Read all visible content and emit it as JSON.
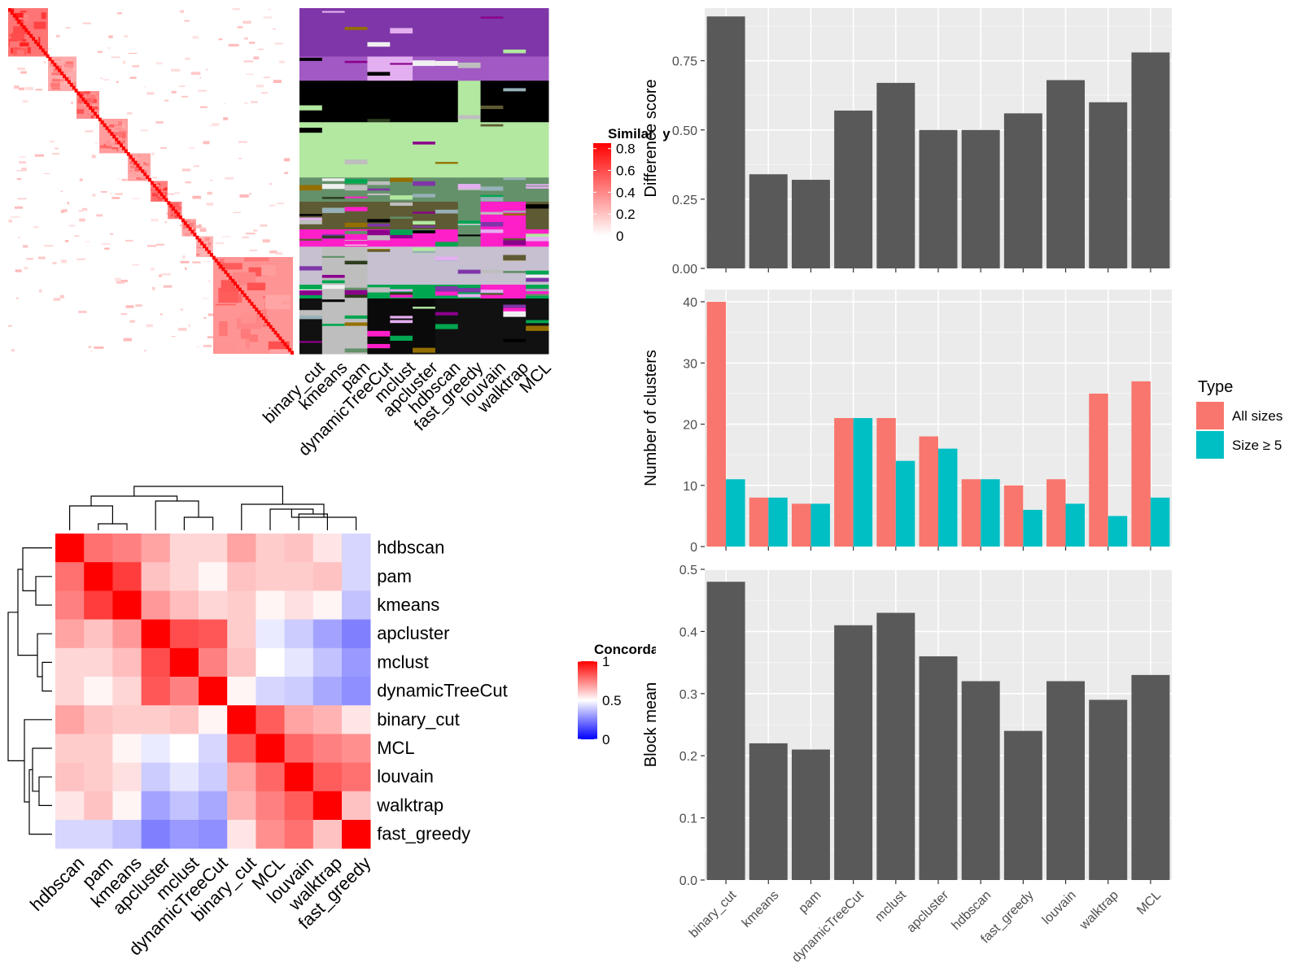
{
  "similarity_legend": {
    "title": "Similarity",
    "ticks": [
      "0.8",
      "0.6",
      "0.4",
      "0.2",
      "0"
    ],
    "tick_values": [
      0.8,
      0.6,
      0.4,
      0.2,
      0
    ],
    "colors": [
      "#FF0000",
      "#FFFFFF"
    ]
  },
  "concordance_legend": {
    "title": "Concordance",
    "ticks": [
      "1",
      "0.5",
      "0"
    ],
    "tick_values": [
      1,
      0.5,
      0
    ],
    "colors": [
      "#FF0000",
      "#FFFFFF",
      "#0000FF"
    ]
  },
  "type_legend": {
    "title": "Type",
    "items": [
      {
        "label": "All sizes",
        "color": "#F8766D"
      },
      {
        "label": "Size ≥ 5",
        "color": "#00BFC4"
      }
    ]
  },
  "chart_data": [
    {
      "type": "heatmap",
      "name": "similarity-matrix",
      "description_of_pattern": "block-diagonal",
      "blocks": [
        {
          "from": 0.0,
          "to": 0.14,
          "strength": 0.9
        },
        {
          "from": 0.14,
          "to": 0.24,
          "strength": 0.55
        },
        {
          "from": 0.24,
          "to": 0.32,
          "strength": 0.75
        },
        {
          "from": 0.32,
          "to": 0.42,
          "strength": 0.65
        },
        {
          "from": 0.42,
          "to": 0.5,
          "strength": 0.6
        },
        {
          "from": 0.5,
          "to": 0.56,
          "strength": 0.85
        },
        {
          "from": 0.56,
          "to": 0.61,
          "strength": 0.8
        },
        {
          "from": 0.61,
          "to": 0.66,
          "strength": 0.6
        },
        {
          "from": 0.66,
          "to": 0.72,
          "strength": 0.5
        },
        {
          "from": 0.72,
          "to": 1.0,
          "strength": 0.7
        }
      ]
    },
    {
      "type": "heatmap",
      "name": "cluster-membership",
      "columns": [
        "binary_cut",
        "kmeans",
        "pam",
        "dynamicTreeCut",
        "mclust",
        "apcluster",
        "hdbscan",
        "fast_greedy",
        "louvain",
        "walktrap",
        "MCL"
      ]
    },
    {
      "type": "heatmap",
      "name": "concordance",
      "rows": [
        "hdbscan",
        "pam",
        "kmeans",
        "apcluster",
        "mclust",
        "dynamicTreeCut",
        "binary_cut",
        "MCL",
        "louvain",
        "walktrap",
        "fast_greedy"
      ],
      "columns": [
        "hdbscan",
        "pam",
        "kmeans",
        "apcluster",
        "mclust",
        "dynamicTreeCut",
        "binary_cut",
        "MCL",
        "louvain",
        "walktrap",
        "fast_greedy"
      ],
      "values": [
        [
          1.0,
          0.78,
          0.75,
          0.68,
          0.58,
          0.58,
          0.68,
          0.6,
          0.62,
          0.55,
          0.42
        ],
        [
          0.78,
          1.0,
          0.88,
          0.62,
          0.58,
          0.52,
          0.62,
          0.6,
          0.6,
          0.62,
          0.42
        ],
        [
          0.75,
          0.88,
          1.0,
          0.7,
          0.63,
          0.58,
          0.6,
          0.52,
          0.56,
          0.52,
          0.38
        ],
        [
          0.68,
          0.62,
          0.7,
          1.0,
          0.85,
          0.83,
          0.6,
          0.46,
          0.4,
          0.32,
          0.25
        ],
        [
          0.58,
          0.58,
          0.63,
          0.85,
          1.0,
          0.75,
          0.62,
          0.5,
          0.45,
          0.38,
          0.3
        ],
        [
          0.58,
          0.52,
          0.58,
          0.83,
          0.75,
          1.0,
          0.52,
          0.42,
          0.4,
          0.33,
          0.28
        ],
        [
          0.68,
          0.62,
          0.6,
          0.6,
          0.62,
          0.52,
          1.0,
          0.82,
          0.68,
          0.65,
          0.55
        ],
        [
          0.6,
          0.6,
          0.52,
          0.46,
          0.5,
          0.42,
          0.82,
          1.0,
          0.8,
          0.75,
          0.72
        ],
        [
          0.62,
          0.6,
          0.56,
          0.4,
          0.45,
          0.4,
          0.68,
          0.8,
          1.0,
          0.82,
          0.78
        ],
        [
          0.55,
          0.62,
          0.52,
          0.32,
          0.38,
          0.33,
          0.65,
          0.75,
          0.82,
          1.0,
          0.62
        ],
        [
          0.42,
          0.42,
          0.38,
          0.25,
          0.3,
          0.28,
          0.55,
          0.72,
          0.78,
          0.62,
          1.0
        ]
      ],
      "legend": "Concordance"
    },
    {
      "type": "bar",
      "name": "difference-score",
      "categories": [
        "binary_cut",
        "kmeans",
        "pam",
        "dynamicTreeCut",
        "mclust",
        "apcluster",
        "hdbscan",
        "fast_greedy",
        "louvain",
        "walktrap",
        "MCL"
      ],
      "values": [
        0.91,
        0.34,
        0.32,
        0.57,
        0.67,
        0.5,
        0.5,
        0.56,
        0.68,
        0.6,
        0.78
      ],
      "ylabel": "Difference score",
      "ylim": [
        0,
        0.94
      ],
      "yticks": [
        0.0,
        0.25,
        0.5,
        0.75
      ],
      "ytick_labels": [
        "0.00",
        "0.25",
        "0.50",
        "0.75"
      ],
      "color": "#595959"
    },
    {
      "type": "bar",
      "name": "number-of-clusters",
      "categories": [
        "binary_cut",
        "kmeans",
        "pam",
        "dynamicTreeCut",
        "mclust",
        "apcluster",
        "hdbscan",
        "fast_greedy",
        "louvain",
        "walktrap",
        "MCL"
      ],
      "series": [
        {
          "name": "All sizes",
          "values": [
            40,
            8,
            7,
            21,
            21,
            18,
            11,
            10,
            11,
            25,
            27
          ],
          "color": "#F8766D"
        },
        {
          "name": "Size ≥ 5",
          "values": [
            11,
            8,
            7,
            21,
            14,
            16,
            11,
            6,
            7,
            5,
            8
          ],
          "color": "#00BFC4"
        }
      ],
      "ylabel": "Number of clusters",
      "ylim": [
        0,
        42
      ],
      "yticks": [
        0,
        10,
        20,
        30,
        40
      ],
      "ytick_labels": [
        "0",
        "10",
        "20",
        "30",
        "40"
      ]
    },
    {
      "type": "bar",
      "name": "block-mean",
      "categories": [
        "binary_cut",
        "kmeans",
        "pam",
        "dynamicTreeCut",
        "mclust",
        "apcluster",
        "hdbscan",
        "fast_greedy",
        "louvain",
        "walktrap",
        "MCL"
      ],
      "values": [
        0.48,
        0.22,
        0.21,
        0.41,
        0.43,
        0.36,
        0.32,
        0.24,
        0.32,
        0.29,
        0.33
      ],
      "ylabel": "Block mean",
      "ylim": [
        0,
        0.5
      ],
      "yticks": [
        0.0,
        0.1,
        0.2,
        0.3,
        0.4,
        0.5
      ],
      "ytick_labels": [
        "0.0",
        "0.1",
        "0.2",
        "0.3",
        "0.4",
        "0.5"
      ],
      "color": "#595959"
    }
  ]
}
